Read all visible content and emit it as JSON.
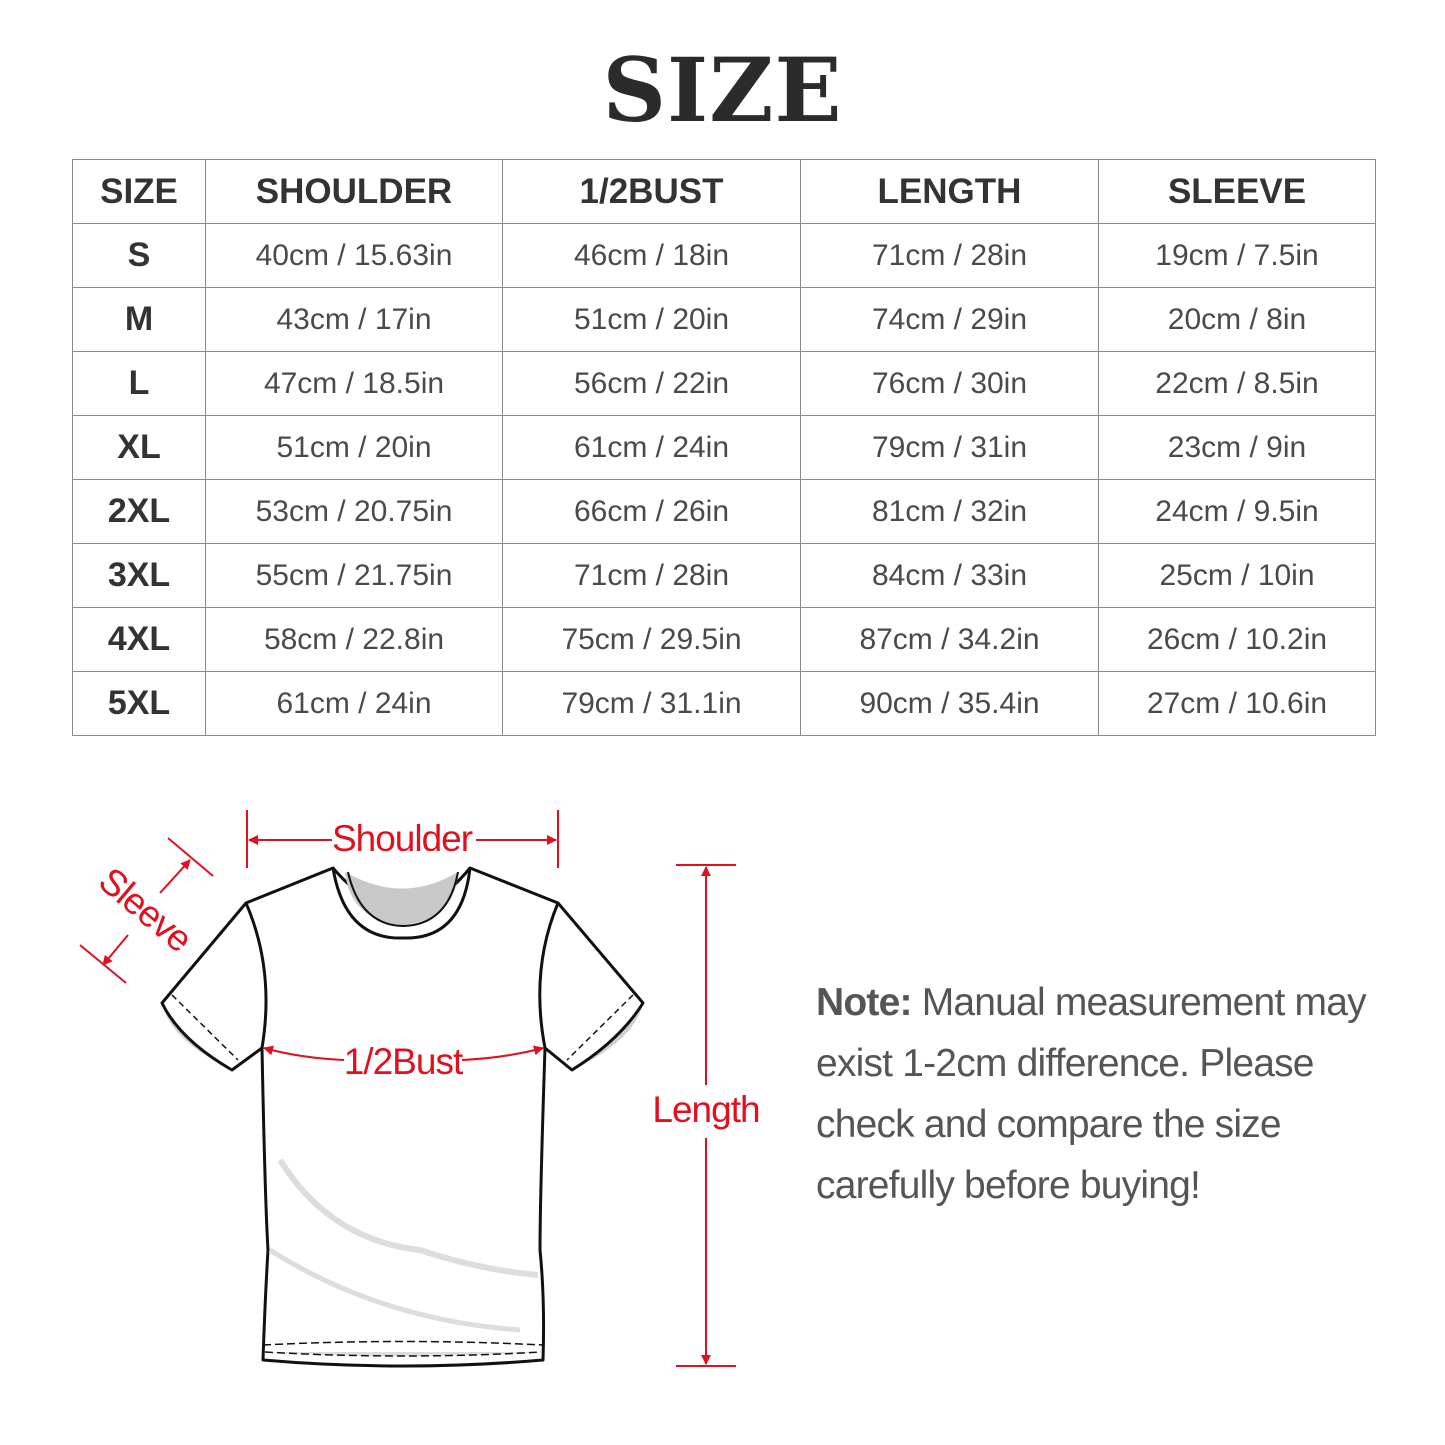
{
  "title": "SIZE",
  "table": {
    "headers": [
      "SIZE",
      "SHOULDER",
      "1/2BUST",
      "LENGTH",
      "SLEEVE"
    ],
    "rows": [
      [
        "S",
        "40cm / 15.63in",
        "46cm / 18in",
        "71cm / 28in",
        "19cm / 7.5in"
      ],
      [
        "M",
        "43cm / 17in",
        "51cm / 20in",
        "74cm / 29in",
        "20cm / 8in"
      ],
      [
        "L",
        "47cm / 18.5in",
        "56cm / 22in",
        "76cm / 30in",
        "22cm / 8.5in"
      ],
      [
        "XL",
        "51cm / 20in",
        "61cm / 24in",
        "79cm / 31in",
        "23cm / 9in"
      ],
      [
        "2XL",
        "53cm / 20.75in",
        "66cm / 26in",
        "81cm / 32in",
        "24cm / 9.5in"
      ],
      [
        "3XL",
        "55cm / 21.75in",
        "71cm / 28in",
        "84cm / 33in",
        "25cm / 10in"
      ],
      [
        "4XL",
        "58cm / 22.8in",
        "75cm / 29.5in",
        "87cm / 34.2in",
        "26cm / 10.2in"
      ],
      [
        "5XL",
        "61cm / 24in",
        "79cm / 31.1in",
        "90cm / 35.4in",
        "27cm / 10.6in"
      ]
    ]
  },
  "diagram": {
    "shoulder_label": "Shoulder",
    "sleeve_label": "Sleeve",
    "bust_label": "1/2Bust",
    "length_label": "Length",
    "accent_color": "#e0101e"
  },
  "note": {
    "label": "Note:",
    "text": " Manual measurement may exist 1-2cm difference. Please check and compare the size carefully before buying!"
  }
}
